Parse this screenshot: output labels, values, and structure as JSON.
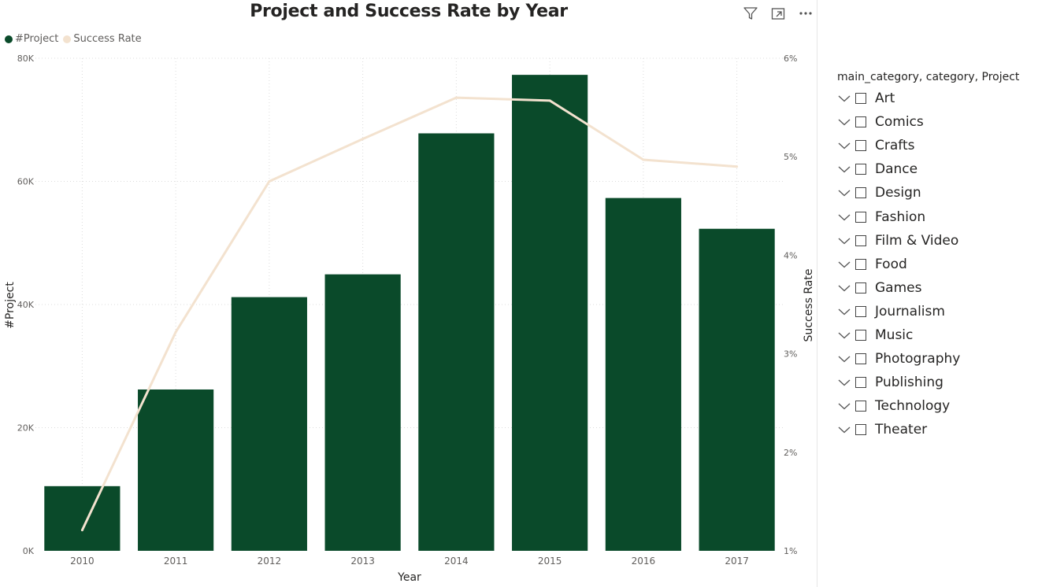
{
  "title": "Project and Success Rate by Year",
  "legend": [
    {
      "label": "#Project",
      "color": "#0a4a2a"
    },
    {
      "label": "Success Rate",
      "color": "#f3e2cf"
    }
  ],
  "header_icons": [
    "filter-icon",
    "focus-mode-icon",
    "more-options-icon"
  ],
  "chart_data": {
    "type": "bar",
    "title": "Project and Success Rate by Year",
    "xlabel": "Year",
    "ylabel": "#Project",
    "y2label": "Success Rate",
    "categories": [
      "2010",
      "2011",
      "2012",
      "2013",
      "2014",
      "2015",
      "2016",
      "2017"
    ],
    "series": [
      {
        "name": "#Project",
        "type": "bar",
        "axis": "left",
        "color": "#0a4a2a",
        "values": [
          10500,
          26200,
          41200,
          44900,
          67800,
          77300,
          57300,
          52300
        ]
      },
      {
        "name": "Success Rate",
        "type": "line",
        "axis": "right",
        "color": "#f3e2cf",
        "values": [
          1.21,
          3.22,
          4.75,
          5.18,
          5.6,
          5.57,
          4.97,
          4.9
        ]
      }
    ],
    "ylim": [
      0,
      80000
    ],
    "y2lim": [
      1,
      6
    ],
    "yticks": [
      "0K",
      "20K",
      "40K",
      "60K",
      "80K"
    ],
    "y2ticks": [
      "1%",
      "2%",
      "3%",
      "4%",
      "5%",
      "6%"
    ],
    "grid": true,
    "legend_position": "top-left"
  },
  "slicer": {
    "header": "main_category, category, Project",
    "items": [
      "Art",
      "Comics",
      "Crafts",
      "Dance",
      "Design",
      "Fashion",
      "Film & Video",
      "Food",
      "Games",
      "Journalism",
      "Music",
      "Photography",
      "Publishing",
      "Technology",
      "Theater"
    ]
  }
}
